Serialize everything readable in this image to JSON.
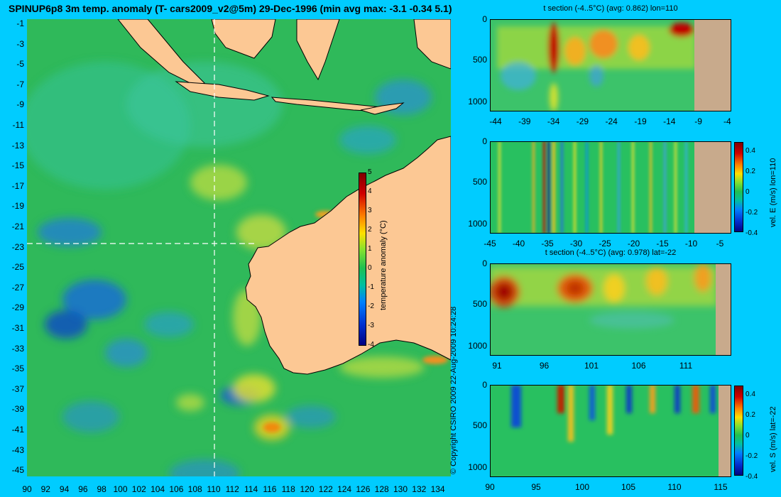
{
  "main_map": {
    "title": "SPINUP6p8 3m temp. anomaly (T- cars2009_v2@5m) 29-Dec-1996 (min avg max: -3.1 -0.34 5.1)",
    "lat_ticks": [
      "-1",
      "-3",
      "-5",
      "-7",
      "-9",
      "-11",
      "-13",
      "-15",
      "-17",
      "-19",
      "-21",
      "-23",
      "-25",
      "-27",
      "-29",
      "-31",
      "-33",
      "-35",
      "-37",
      "-39",
      "-41",
      "-43",
      "-45"
    ],
    "lon_ticks": [
      "90",
      "92",
      "94",
      "96",
      "98",
      "100",
      "102",
      "104",
      "106",
      "108",
      "110",
      "112",
      "114",
      "116",
      "118",
      "120",
      "122",
      "124",
      "126",
      "128",
      "130",
      "132",
      "134"
    ],
    "colorbar_label": "temperature anomaly (°C)",
    "colorbar_ticks": [
      "5",
      "4",
      "3",
      "2",
      "1",
      "0",
      "-1",
      "-2",
      "-3",
      "-4"
    ]
  },
  "copyright": "© Copyright CSIRO 2009   22-Aug-2009 10:24:28",
  "panels": {
    "p1": {
      "title": "t section (-4..5°C) (avg: 0.862) lon=110",
      "y_ticks": [
        "0",
        "500",
        "1000"
      ],
      "x_ticks": [
        "-44",
        "-39",
        "-34",
        "-29",
        "-24",
        "-19",
        "-14",
        "-9",
        "-4"
      ]
    },
    "p2": {
      "y_ticks": [
        "0",
        "500",
        "1000"
      ],
      "x_ticks": [
        "-45",
        "-40",
        "-35",
        "-30",
        "-25",
        "-20",
        "-15",
        "-10",
        "-5"
      ],
      "colorbar_label": "vel. E (m/s) lon=110",
      "colorbar_ticks": [
        "0.4",
        "0.2",
        "0",
        "-0.2",
        "-0.4"
      ]
    },
    "p3": {
      "title": "t section (-4..5°C) (avg: 0.978) lat=-22",
      "y_ticks": [
        "0",
        "500",
        "1000"
      ],
      "x_ticks": [
        "91",
        "96",
        "101",
        "106",
        "111"
      ]
    },
    "p4": {
      "y_ticks": [
        "0",
        "500",
        "1000"
      ],
      "x_ticks": [
        "90",
        "95",
        "100",
        "105",
        "110",
        "115"
      ],
      "colorbar_label": "vel. S (m/s) lat=-22",
      "colorbar_ticks": [
        "0.4",
        "0.2",
        "0",
        "-0.2",
        "-0.4"
      ]
    }
  },
  "colors": {
    "background": "#00ccff",
    "land": "#fcc894",
    "section_land": "#c8aa8c",
    "ocean_base": "#2fb95a"
  }
}
